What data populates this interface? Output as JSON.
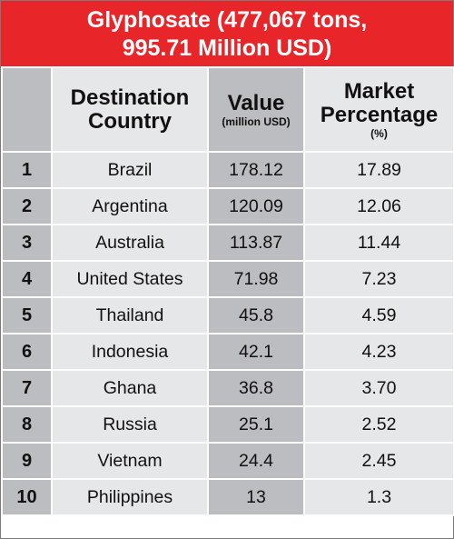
{
  "title_line1": "Glyphosate (477,067 tons,",
  "title_line2": "995.71 Million USD)",
  "colors": {
    "title_bg": "#e8262a",
    "dark_col": "#bcbdc0",
    "light_col": "#e6e7e8"
  },
  "chart_data": {
    "type": "table",
    "columns": [
      {
        "label": "",
        "sub": ""
      },
      {
        "label": "Destination Country",
        "sub": ""
      },
      {
        "label": "Value",
        "sub": "(million USD)"
      },
      {
        "label": "Market Percentage",
        "sub": "(%)"
      }
    ],
    "rows": [
      {
        "rank": "1",
        "country": "Brazil",
        "value": "178.12",
        "pct": "17.89"
      },
      {
        "rank": "2",
        "country": "Argentina",
        "value": "120.09",
        "pct": "12.06"
      },
      {
        "rank": "3",
        "country": "Australia",
        "value": "113.87",
        "pct": "11.44"
      },
      {
        "rank": "4",
        "country": "United States",
        "value": "71.98",
        "pct": "7.23"
      },
      {
        "rank": "5",
        "country": "Thailand",
        "value": "45.8",
        "pct": "4.59"
      },
      {
        "rank": "6",
        "country": "Indonesia",
        "value": "42.1",
        "pct": "4.23"
      },
      {
        "rank": "7",
        "country": "Ghana",
        "value": "36.8",
        "pct": "3.70"
      },
      {
        "rank": "8",
        "country": "Russia",
        "value": "25.1",
        "pct": "2.52"
      },
      {
        "rank": "9",
        "country": "Vietnam",
        "value": "24.4",
        "pct": "2.45"
      },
      {
        "rank": "10",
        "country": "Philippines",
        "value": "13",
        "pct": "1.3"
      }
    ]
  }
}
